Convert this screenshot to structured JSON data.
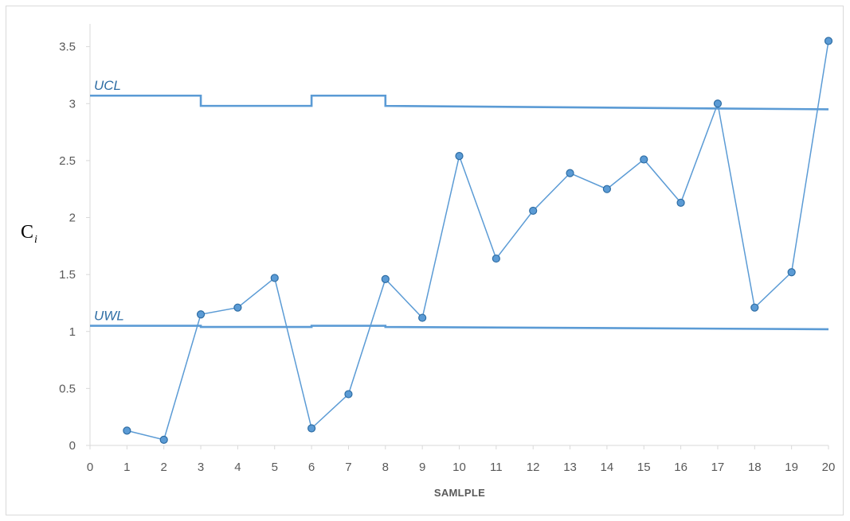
{
  "chart_data": {
    "type": "line",
    "xlabel": "SAMLPLE",
    "ylabel": "C",
    "ylabel_subscript": "i",
    "xlim": [
      0,
      20
    ],
    "ylim": [
      0,
      3.7
    ],
    "x_ticks": [
      "0",
      "1",
      "2",
      "3",
      "4",
      "5",
      "6",
      "7",
      "8",
      "9",
      "10",
      "11",
      "12",
      "13",
      "14",
      "15",
      "16",
      "17",
      "18",
      "19",
      "20"
    ],
    "y_ticks": [
      "0",
      "0.5",
      "1",
      "1.5",
      "2",
      "2.5",
      "3",
      "3.5"
    ],
    "grid": false,
    "colors": {
      "line": "#5b9bd5",
      "marker_fill": "#5b9bd5",
      "marker_edge": "#2e6da4",
      "axis": "#d9d9d9"
    },
    "series": [
      {
        "x": [
          1,
          2,
          3,
          4,
          5,
          6,
          7,
          8,
          9,
          10,
          11,
          12,
          13,
          14,
          15,
          16,
          17,
          18,
          19,
          20
        ],
        "values": [
          0.13,
          0.05,
          1.15,
          1.21,
          1.47,
          0.15,
          0.45,
          1.46,
          1.12,
          2.54,
          1.64,
          2.06,
          2.39,
          2.25,
          2.51,
          2.13,
          3.0,
          1.21,
          1.52,
          3.55
        ]
      }
    ],
    "limits": [
      {
        "name": "UCL",
        "segments": [
          {
            "x0": 0,
            "x1": 3,
            "y": 3.07
          },
          {
            "x0": 3,
            "x1": 6,
            "y": 2.98
          },
          {
            "x0": 6,
            "x1": 8,
            "y": 3.07
          },
          {
            "x0": 8,
            "x1": 20,
            "y0": 2.98,
            "y1": 2.95
          }
        ]
      },
      {
        "name": "UWL",
        "segments": [
          {
            "x0": 0,
            "x1": 3,
            "y": 1.05
          },
          {
            "x0": 3,
            "x1": 6,
            "y": 1.04
          },
          {
            "x0": 6,
            "x1": 8,
            "y": 1.05
          },
          {
            "x0": 8,
            "x1": 20,
            "y0": 1.04,
            "y1": 1.02
          }
        ]
      }
    ]
  }
}
